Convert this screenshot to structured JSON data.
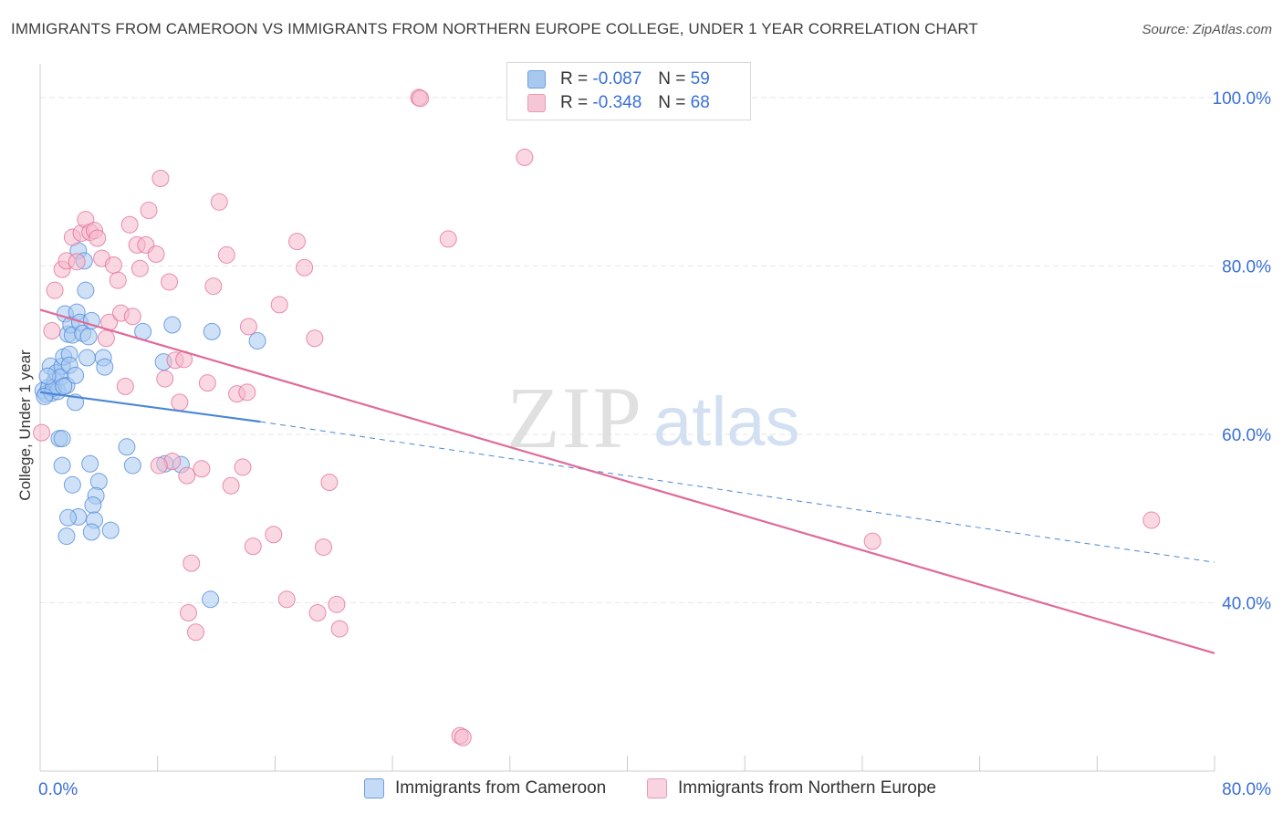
{
  "header": {
    "title": "IMMIGRANTS FROM CAMEROON VS IMMIGRANTS FROM NORTHERN EUROPE COLLEGE, UNDER 1 YEAR CORRELATION CHART",
    "source": "Source: ZipAtlas.com"
  },
  "watermark": {
    "zip": "ZIP",
    "atlas": "atlas"
  },
  "legend": {
    "rows": [
      {
        "r_label": "R =",
        "r_value": "-0.087",
        "n_label": "N =",
        "n_value": "59",
        "color": "#a8c8f0"
      },
      {
        "r_label": "R =",
        "r_value": "-0.348",
        "n_label": "N =",
        "n_value": "68",
        "color": "#f5b8cb"
      }
    ]
  },
  "bottom_legend": [
    {
      "label": "Immigrants from Cameroon",
      "color": "#a8c8f0"
    },
    {
      "label": "Immigrants from Northern Europe",
      "color": "#f5b8cb"
    }
  ],
  "chart_data": {
    "type": "scatter",
    "title": "IMMIGRANTS FROM CAMEROON VS IMMIGRANTS FROM NORTHERN EUROPE COLLEGE, UNDER 1 YEAR CORRELATION CHART",
    "xlabel": "",
    "ylabel": "College, Under 1 year",
    "xlim": [
      0,
      80
    ],
    "ylim": [
      20,
      104
    ],
    "x_tick_labels": [
      "0.0%",
      "80.0%"
    ],
    "y_ticks": [
      40,
      60,
      80,
      100
    ],
    "y_tick_labels": [
      "40.0%",
      "60.0%",
      "80.0%",
      "100.0%"
    ],
    "grid": true,
    "legend_position": "top-center",
    "series": [
      {
        "name": "Immigrants from Cameroon",
        "color": "#4a86d8",
        "fill": "#a8c8f0",
        "r": -0.087,
        "n": 59,
        "trend_solid": [
          [
            0,
            65.0
          ],
          [
            15,
            61.5
          ]
        ],
        "trend_dashed": [
          [
            15,
            61.5
          ],
          [
            80,
            44.8
          ]
        ],
        "points": [
          [
            0.2,
            65.2
          ],
          [
            0.4,
            64.8
          ],
          [
            0.6,
            65.6
          ],
          [
            0.8,
            64.9
          ],
          [
            1.0,
            66.3
          ],
          [
            0.7,
            68.1
          ],
          [
            1.2,
            65.1
          ],
          [
            0.9,
            65.5
          ],
          [
            1.1,
            67.3
          ],
          [
            1.5,
            68.1
          ],
          [
            1.4,
            66.8
          ],
          [
            1.8,
            65.8
          ],
          [
            1.6,
            69.2
          ],
          [
            1.3,
            59.5
          ],
          [
            1.5,
            56.3
          ],
          [
            1.7,
            74.3
          ],
          [
            1.9,
            71.9
          ],
          [
            2.1,
            73.0
          ],
          [
            2.0,
            69.5
          ],
          [
            2.2,
            71.8
          ],
          [
            2.4,
            63.8
          ],
          [
            2.5,
            74.5
          ],
          [
            2.7,
            73.3
          ],
          [
            2.6,
            81.8
          ],
          [
            2.9,
            72.0
          ],
          [
            3.0,
            80.6
          ],
          [
            3.1,
            77.1
          ],
          [
            3.2,
            69.1
          ],
          [
            3.3,
            71.6
          ],
          [
            3.5,
            73.5
          ],
          [
            3.4,
            56.5
          ],
          [
            4.3,
            69.1
          ],
          [
            4.4,
            68.0
          ],
          [
            4.0,
            54.4
          ],
          [
            3.8,
            52.7
          ],
          [
            3.6,
            51.6
          ],
          [
            3.7,
            49.8
          ],
          [
            3.5,
            48.4
          ],
          [
            4.8,
            48.6
          ],
          [
            2.6,
            50.2
          ],
          [
            1.9,
            50.1
          ],
          [
            1.8,
            47.9
          ],
          [
            2.2,
            54.0
          ],
          [
            5.9,
            58.5
          ],
          [
            6.3,
            56.3
          ],
          [
            7.0,
            72.2
          ],
          [
            8.5,
            56.5
          ],
          [
            8.4,
            68.6
          ],
          [
            9.0,
            73.0
          ],
          [
            9.6,
            56.4
          ],
          [
            11.7,
            72.2
          ],
          [
            14.8,
            71.1
          ],
          [
            11.6,
            40.4
          ],
          [
            1.5,
            59.5
          ],
          [
            0.5,
            66.9
          ],
          [
            2.0,
            68.2
          ],
          [
            2.4,
            67.0
          ],
          [
            1.6,
            65.7
          ],
          [
            0.3,
            64.5
          ]
        ]
      },
      {
        "name": "Immigrants from Northern Europe",
        "color": "#e06a98",
        "fill": "#f5b8cb",
        "r": -0.348,
        "n": 68,
        "trend_solid": [
          [
            0,
            74.8
          ],
          [
            80,
            34.0
          ]
        ],
        "points": [
          [
            0.1,
            60.2
          ],
          [
            0.8,
            72.3
          ],
          [
            1.0,
            77.1
          ],
          [
            1.5,
            79.6
          ],
          [
            1.8,
            80.6
          ],
          [
            2.2,
            83.4
          ],
          [
            2.5,
            80.5
          ],
          [
            2.8,
            83.9
          ],
          [
            3.1,
            85.5
          ],
          [
            3.4,
            84.0
          ],
          [
            3.7,
            84.2
          ],
          [
            3.9,
            83.3
          ],
          [
            4.2,
            80.9
          ],
          [
            4.5,
            71.4
          ],
          [
            4.7,
            73.3
          ],
          [
            5.0,
            80.1
          ],
          [
            5.3,
            78.3
          ],
          [
            5.5,
            74.4
          ],
          [
            5.8,
            65.7
          ],
          [
            6.1,
            84.9
          ],
          [
            6.3,
            74.0
          ],
          [
            6.6,
            82.5
          ],
          [
            6.8,
            79.7
          ],
          [
            7.2,
            82.5
          ],
          [
            7.4,
            86.6
          ],
          [
            7.9,
            81.4
          ],
          [
            8.2,
            90.4
          ],
          [
            8.5,
            66.6
          ],
          [
            8.8,
            78.1
          ],
          [
            9.2,
            68.8
          ],
          [
            9.5,
            63.8
          ],
          [
            9.8,
            68.9
          ],
          [
            9.0,
            56.8
          ],
          [
            10.0,
            55.1
          ],
          [
            10.3,
            44.7
          ],
          [
            10.6,
            36.5
          ],
          [
            11.0,
            55.9
          ],
          [
            11.4,
            66.1
          ],
          [
            11.8,
            77.6
          ],
          [
            12.2,
            87.6
          ],
          [
            12.7,
            81.3
          ],
          [
            13.0,
            53.9
          ],
          [
            13.4,
            64.8
          ],
          [
            13.8,
            56.1
          ],
          [
            14.2,
            72.8
          ],
          [
            14.5,
            46.7
          ],
          [
            15.9,
            48.1
          ],
          [
            16.3,
            75.4
          ],
          [
            16.8,
            40.4
          ],
          [
            17.5,
            82.9
          ],
          [
            18.0,
            79.8
          ],
          [
            18.7,
            71.4
          ],
          [
            18.9,
            38.8
          ],
          [
            19.3,
            46.6
          ],
          [
            19.7,
            54.3
          ],
          [
            20.2,
            39.8
          ],
          [
            20.4,
            36.9
          ],
          [
            10.1,
            38.8
          ],
          [
            8.1,
            56.3
          ],
          [
            14.1,
            65.0
          ],
          [
            25.8,
            100.0
          ],
          [
            25.9,
            99.9
          ],
          [
            27.8,
            83.2
          ],
          [
            28.6,
            24.2
          ],
          [
            28.8,
            24.0
          ],
          [
            33.0,
            92.9
          ],
          [
            56.7,
            47.3
          ],
          [
            75.7,
            49.8
          ]
        ]
      }
    ]
  }
}
